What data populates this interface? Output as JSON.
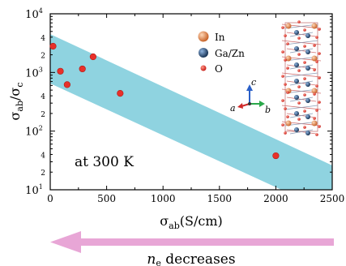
{
  "chart_data": {
    "type": "scatter",
    "xlabel_main": "σ",
    "xlabel_sub": "ab",
    "xlabel_unit": "(S/cm)",
    "ylabel_num": "σ",
    "ylabel_num_sub": "ab",
    "ylabel_den": "σ",
    "ylabel_den_sub": "c",
    "xlim": [
      0,
      2500
    ],
    "ylim": [
      10,
      10000
    ],
    "yscale": "log",
    "x_ticks": [
      {
        "value": 0,
        "label": "0"
      },
      {
        "value": 500,
        "label": "500"
      },
      {
        "value": 1000,
        "label": "1000"
      },
      {
        "value": 1500,
        "label": "1500"
      },
      {
        "value": 2000,
        "label": "2000"
      },
      {
        "value": 2500,
        "label": "2500"
      }
    ],
    "y_major_ticks": [
      {
        "value": 10,
        "base": "10",
        "exp": "1"
      },
      {
        "value": 100,
        "base": "10",
        "exp": "2"
      },
      {
        "value": 1000,
        "base": "10",
        "exp": "3"
      },
      {
        "value": 10000,
        "base": "10",
        "exp": "4"
      }
    ],
    "y_minor_labels": [
      {
        "value": 20,
        "label": "2"
      },
      {
        "value": 40,
        "label": "4"
      },
      {
        "value": 200,
        "label": "2"
      },
      {
        "value": 400,
        "label": "4"
      },
      {
        "value": 2000,
        "label": "2"
      },
      {
        "value": 4000,
        "label": "4"
      }
    ],
    "band": {
      "upper": [
        [
          0,
          4500
        ],
        [
          2500,
          26
        ]
      ],
      "lower": [
        [
          0,
          650
        ],
        [
          2500,
          4
        ]
      ]
    },
    "points": [
      {
        "x": 25,
        "y": 2800
      },
      {
        "x": 90,
        "y": 1050
      },
      {
        "x": 150,
        "y": 620
      },
      {
        "x": 285,
        "y": 1150
      },
      {
        "x": 380,
        "y": 1850
      },
      {
        "x": 620,
        "y": 440
      },
      {
        "x": 2000,
        "y": 38
      }
    ],
    "annotation": "at 300 K",
    "colors": {
      "band": "#8fd3e0",
      "point": "#e8302a",
      "arrow": "#e8a6d6"
    }
  },
  "legend": {
    "items": [
      {
        "label": "In",
        "color": "#e0864a"
      },
      {
        "label": "Ga/Zn",
        "color": "#2f4f7a"
      },
      {
        "label": "O",
        "color": "#e8302a"
      }
    ],
    "axes": {
      "a": "a",
      "b": "b",
      "c": "c"
    }
  },
  "arrow": {
    "label_main": "n",
    "label_sub": "e",
    "label_rest": " decreases"
  }
}
